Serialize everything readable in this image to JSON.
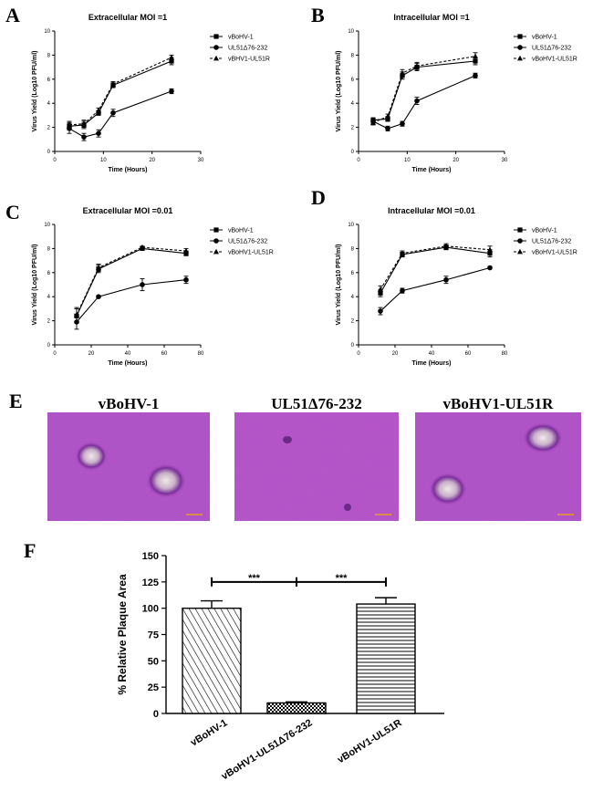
{
  "panels": {
    "A": "A",
    "B": "B",
    "C": "C",
    "D": "D",
    "E": "E",
    "F": "F"
  },
  "legend_markers": {
    "vBoHV-1": "square",
    "UL51Δ76-232": "circle",
    "vBHV1-UL51R": "triangle",
    "vBoHV1-UL51R": "triangle"
  },
  "micrographs": [
    {
      "label": "vBoHV-1"
    },
    {
      "label": "UL51Δ76-232"
    },
    {
      "label": "vBoHV1-UL51R"
    }
  ],
  "colors": {
    "purple_stain": "#b04fc8",
    "plaque_edge": "#5a1f7a",
    "scale_bar": "#e8a020"
  },
  "chart_data": [
    {
      "id": "A",
      "type": "line",
      "title": "Extracellular MOI =1",
      "xlabel": "Time (Hours)",
      "ylabel": "Virus Yield (Log10 PFU/ml)",
      "xlim": [
        0,
        30
      ],
      "ylim": [
        0,
        10
      ],
      "xticks": [
        0,
        10,
        20,
        30
      ],
      "yticks": [
        0,
        2,
        4,
        6,
        8,
        10
      ],
      "series": [
        {
          "name": "vBoHV-1",
          "x": [
            3,
            6,
            9,
            12,
            24
          ],
          "y": [
            2.1,
            2.2,
            3.2,
            5.5,
            7.5
          ],
          "err": [
            0.3,
            0.3,
            0.2,
            0.2,
            0.3
          ]
        },
        {
          "name": "UL51Δ76-232",
          "x": [
            3,
            6,
            9,
            12,
            24
          ],
          "y": [
            1.9,
            1.2,
            1.5,
            3.2,
            5.0
          ],
          "err": [
            0.4,
            0.3,
            0.3,
            0.3,
            0.2
          ]
        },
        {
          "name": "vBHV1-UL51R",
          "x": [
            3,
            6,
            9,
            12,
            24
          ],
          "y": [
            2.2,
            2.3,
            3.4,
            5.6,
            7.8
          ],
          "err": [
            0.3,
            0.3,
            0.2,
            0.2,
            0.2
          ]
        }
      ]
    },
    {
      "id": "B",
      "type": "line",
      "title": "Intracellular MOI =1",
      "xlabel": "Time (Hours)",
      "ylabel": "Virus Yield (Log10 PFU/ml)",
      "xlim": [
        0,
        30
      ],
      "ylim": [
        0,
        10
      ],
      "xticks": [
        0,
        10,
        20,
        30
      ],
      "yticks": [
        0,
        2,
        4,
        6,
        8,
        10
      ],
      "series": [
        {
          "name": "vBoHV-1",
          "x": [
            3,
            6,
            9,
            12,
            24
          ],
          "y": [
            2.6,
            2.7,
            6.3,
            7.0,
            7.5
          ],
          "err": [
            0.2,
            0.2,
            0.3,
            0.3,
            0.3
          ]
        },
        {
          "name": "UL51Δ76-232",
          "x": [
            3,
            6,
            9,
            12,
            24
          ],
          "y": [
            2.5,
            1.9,
            2.3,
            4.2,
            6.3
          ],
          "err": [
            0.2,
            0.2,
            0.2,
            0.3,
            0.2
          ]
        },
        {
          "name": "vBoHV1-UL51R",
          "x": [
            3,
            6,
            9,
            12,
            24
          ],
          "y": [
            2.4,
            2.9,
            6.5,
            7.1,
            7.9
          ],
          "err": [
            0.2,
            0.2,
            0.3,
            0.3,
            0.3
          ]
        }
      ]
    },
    {
      "id": "C",
      "type": "line",
      "title": "Extracellular MOI =0.01",
      "xlabel": "Time (Hours)",
      "ylabel": "Virus Yield (Log10 PFU/ml)",
      "xlim": [
        0,
        80
      ],
      "ylim": [
        0,
        10
      ],
      "xticks": [
        0,
        20,
        40,
        60,
        80
      ],
      "yticks": [
        0,
        2,
        4,
        6,
        8,
        10
      ],
      "series": [
        {
          "name": "vBoHV-1",
          "x": [
            12,
            24,
            48,
            72
          ],
          "y": [
            2.4,
            6.3,
            8.0,
            7.6
          ],
          "err": [
            0.6,
            0.3,
            0.1,
            0.2
          ]
        },
        {
          "name": "UL51Δ76-232",
          "x": [
            12,
            24,
            48,
            72
          ],
          "y": [
            1.9,
            4.0,
            5.0,
            5.4
          ],
          "err": [
            0.6,
            0.1,
            0.5,
            0.3
          ]
        },
        {
          "name": "vBoHV1-UL51R",
          "x": [
            12,
            24,
            48,
            72
          ],
          "y": [
            2.5,
            6.4,
            8.1,
            7.8
          ],
          "err": [
            0.6,
            0.3,
            0.1,
            0.2
          ]
        }
      ]
    },
    {
      "id": "D",
      "type": "line",
      "title": "Intracellular MOI =0.01",
      "xlabel": "Time (Hours)",
      "ylabel": "Virus Yield (Log10 PFU/ml)",
      "xlim": [
        0,
        80
      ],
      "ylim": [
        0,
        10
      ],
      "xticks": [
        0,
        20,
        40,
        60,
        80
      ],
      "yticks": [
        0,
        2,
        4,
        6,
        8,
        10
      ],
      "series": [
        {
          "name": "vBoHV-1",
          "x": [
            12,
            24,
            48,
            72
          ],
          "y": [
            4.3,
            7.5,
            8.1,
            7.6
          ],
          "err": [
            0.3,
            0.2,
            0.2,
            0.3
          ]
        },
        {
          "name": "UL51Δ76-232",
          "x": [
            12,
            24,
            48,
            72
          ],
          "y": [
            2.8,
            4.5,
            5.4,
            6.4
          ],
          "err": [
            0.3,
            0.2,
            0.3,
            0.1
          ]
        },
        {
          "name": "vBoHV1-UL51R",
          "x": [
            12,
            24,
            48,
            72
          ],
          "y": [
            4.6,
            7.6,
            8.2,
            7.9
          ],
          "err": [
            0.3,
            0.2,
            0.2,
            0.3
          ]
        }
      ]
    },
    {
      "id": "F",
      "type": "bar",
      "ylabel": "% Relative Plaque Area",
      "ylim": [
        0,
        150
      ],
      "yticks": [
        0,
        25,
        50,
        75,
        100,
        125,
        150
      ],
      "categories": [
        "vBoHV-1",
        "vBoHV1-UL51Δ76-232",
        "vBoHV1-UL51R"
      ],
      "values": [
        100,
        10,
        104
      ],
      "errors": [
        7,
        1,
        6
      ],
      "significance": [
        {
          "from": 0,
          "to": 1,
          "label": "***"
        },
        {
          "from": 1,
          "to": 2,
          "label": "***"
        }
      ]
    }
  ]
}
